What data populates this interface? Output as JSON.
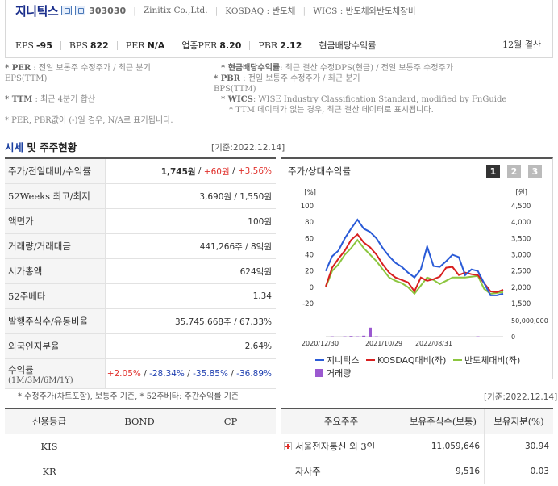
{
  "header": {
    "name": "지니틱스",
    "code": "303030",
    "eng_name": "Zinitix Co.,Ltd.",
    "market": "KOSDAQ : 반도체",
    "wics": "WICS : 반도체와반도체장비",
    "eps_label": "EPS",
    "eps_value": "-95",
    "bps_label": "BPS",
    "bps_value": "822",
    "per_label": "PER",
    "per_value": "N/A",
    "ind_per_label": "업종PER",
    "ind_per_value": "8.20",
    "pbr_label": "PBR",
    "pbr_value": "2.12",
    "dividend_label": "현금배당수익률",
    "dividend_value": "",
    "settlement": "12월 결산"
  },
  "notes": {
    "per_title": "* PER",
    "per_text": ": 전일 보통주 수정주가 / 최근 분기",
    "per_text2": "EPS(TTM)",
    "div_title": "* 현금배당수익률",
    "div_text": ": 최근 결산 수정DPS(현금) / 전일 보통주 수정주가",
    "pbr_title": "* PBR",
    "pbr_text": ": 전일 보통주 수정주가 / 최근 분기",
    "pbr_text2": "BPS(TTM)",
    "ttm_title": "* TTM",
    "ttm_text": ": 최근 4분기 합산",
    "wics_title": "* WICS",
    "wics_text": ": WISE Industry Classification Standard, modified by FnGuide",
    "ttm_note": "* TTM 데이터가 없는 경우, 최근 결산 데이터로 표시됩니다.",
    "na_note": "* PER, PBR값이 (-)일 경우, N/A로 표기됩니다."
  },
  "market_section": {
    "title_blue": "시세",
    "title_rest": " 및 주주현황",
    "date": "[기준:2022.12.14]",
    "rows": [
      {
        "label": "주가/전일대비/수익률",
        "price": "1,745원",
        "change": "+60원",
        "rate": "+3.56%"
      },
      {
        "label": "52Weeks 최고/최저",
        "value": "3,690원 / 1,550원"
      },
      {
        "label": "액면가",
        "value": "100원"
      },
      {
        "label": "거래량/거래대금",
        "value": "441,266주 / 8억원"
      },
      {
        "label": "시가총액",
        "value": "624억원"
      },
      {
        "label": "52주베타",
        "value": "1.34"
      },
      {
        "label": "발행주식수/유동비율",
        "value": "35,745,668주 / 67.33%"
      },
      {
        "label": "외국인지분율",
        "value": "2.64%"
      }
    ],
    "returns_label": "수익률",
    "returns_sub": "(1M/3M/6M/1Y)",
    "returns": [
      "+2.05%",
      "-28.34%",
      "-35.85%",
      "-36.89%"
    ],
    "footnote": "* 수정주가(차트포함), 보통주 기준, * 52주베타: 주간수익률 기준"
  },
  "chart_panel": {
    "title": "주가/상대수익률",
    "pages": [
      "1",
      "2",
      "3"
    ],
    "active_page": 0,
    "colors": {
      "stock": "#2a5bd7",
      "kosdaq": "#d81f1f",
      "sector": "#8cc63f",
      "volume": "#9b59d0"
    }
  },
  "chart_data": {
    "type": "line",
    "left_unit": "[%]",
    "right_unit": "[원]",
    "ylim_left": [
      -20,
      100
    ],
    "yticks_left": [
      "100",
      "80",
      "60",
      "40",
      "20",
      "0",
      "-20"
    ],
    "ylim_right": [
      1500,
      4500
    ],
    "yticks_right": [
      "4,500",
      "4,000",
      "3,500",
      "3,000",
      "2,500",
      "2,000",
      "1,500"
    ],
    "volume_ticks": [
      "50,000,000",
      "0"
    ],
    "xticks": [
      "2020/12/30",
      "2021/10/29",
      "2022/08/31"
    ],
    "series": [
      {
        "name": "지니틱스",
        "values": [
          20,
          38,
          45,
          60,
          72,
          83,
          72,
          68,
          60,
          48,
          38,
          30,
          25,
          18,
          12,
          22,
          50,
          26,
          25,
          32,
          40,
          37,
          15,
          22,
          20,
          5,
          -10,
          -10,
          -8
        ]
      },
      {
        "name": "KOSDAQ대비(좌)",
        "values": [
          1,
          24,
          35,
          45,
          58,
          65,
          55,
          49,
          40,
          28,
          18,
          12,
          9,
          6,
          -5,
          12,
          8,
          10,
          13,
          24,
          25,
          15,
          18,
          16,
          15,
          5,
          -5,
          -6,
          -3
        ]
      },
      {
        "name": "반도체대비(좌)",
        "values": [
          0,
          20,
          28,
          40,
          48,
          58,
          48,
          40,
          32,
          22,
          12,
          8,
          5,
          0,
          -8,
          2,
          12,
          9,
          4,
          8,
          12,
          12,
          12,
          13,
          14,
          -2,
          -8,
          -7,
          -6
        ]
      }
    ],
    "volume_series": {
      "name": "거래량",
      "values": [
        0,
        1,
        0,
        1,
        2,
        1,
        3,
        28,
        1,
        0,
        0,
        0,
        0,
        0,
        0,
        0,
        0,
        0,
        0,
        0,
        0,
        0,
        0,
        0,
        1,
        0,
        0,
        0,
        0
      ]
    },
    "volume_ylim": [
      0,
      50
    ]
  },
  "credit": {
    "headers": [
      "신용등급",
      "BOND",
      "CP"
    ],
    "rows": [
      [
        "KIS",
        "",
        ""
      ],
      [
        "KR",
        "",
        ""
      ]
    ]
  },
  "shareholders": {
    "date": "[기준:2022.12.14]",
    "headers": [
      "주요주주",
      "보유주식수(보통)",
      "보유지분(%)"
    ],
    "rows": [
      {
        "name": "서울전자통신 외 3인",
        "shares": "11,059,646",
        "pct": "30.94",
        "expandable": true
      },
      {
        "name": "자사주",
        "shares": "9,516",
        "pct": "0.03",
        "expandable": false
      }
    ]
  }
}
